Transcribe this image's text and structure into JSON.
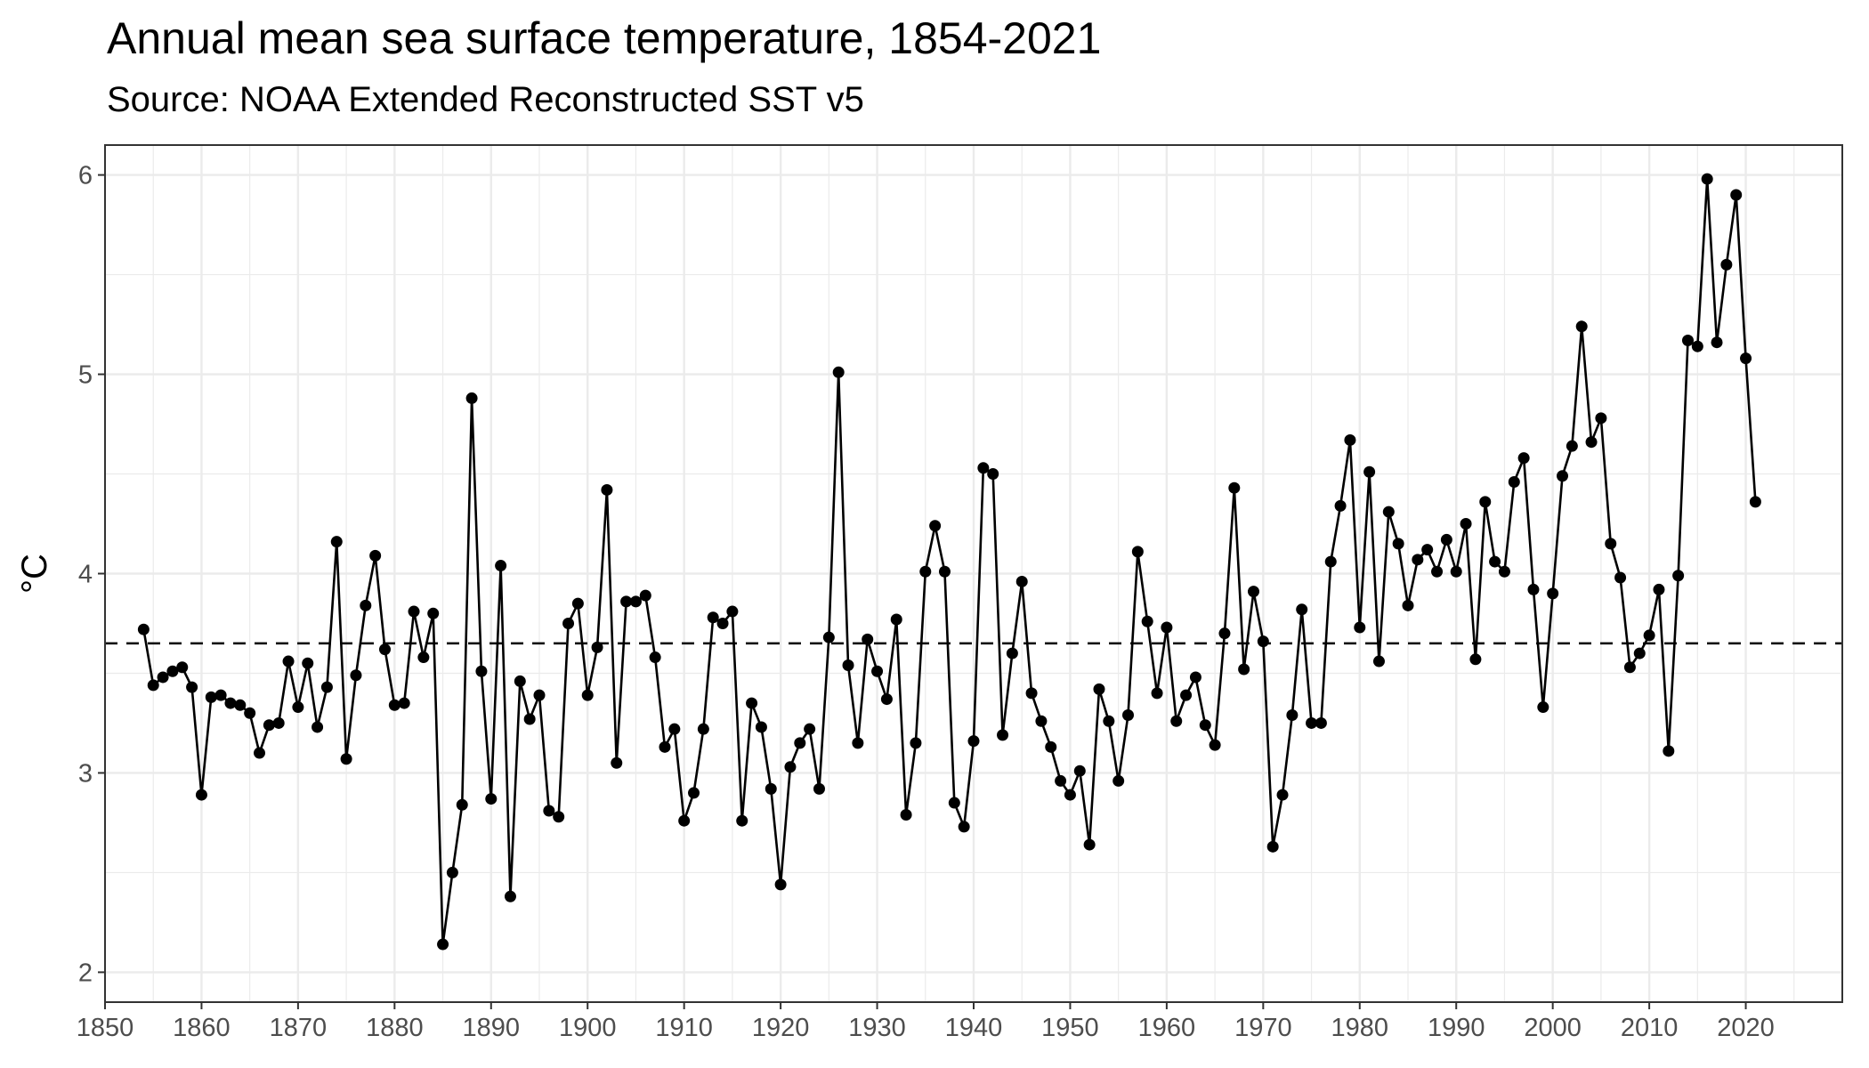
{
  "chart_data": {
    "type": "line",
    "title": "Annual mean sea surface temperature, 1854-2021",
    "subtitle": "Source: NOAA Extended Reconstructed SST v5",
    "xlabel": "",
    "ylabel": "°C",
    "xlim": [
      1850,
      2030
    ],
    "ylim": [
      2,
      6.15
    ],
    "x_ticks": [
      1850,
      1860,
      1870,
      1880,
      1890,
      1900,
      1910,
      1920,
      1930,
      1940,
      1950,
      1960,
      1970,
      1980,
      1990,
      2000,
      2010,
      2020
    ],
    "y_ticks": [
      2,
      3,
      4,
      5,
      6
    ],
    "grid": true,
    "markers": true,
    "reference_line": {
      "style": "dashed",
      "y": 3.65
    },
    "series": [
      {
        "x": [
          1854,
          1855,
          1856,
          1857,
          1858,
          1859,
          1860,
          1861,
          1862,
          1863,
          1864,
          1865,
          1866,
          1867,
          1868,
          1869,
          1870,
          1871,
          1872,
          1873,
          1874,
          1875,
          1876,
          1877,
          1878,
          1879,
          1880,
          1881,
          1882,
          1883,
          1884,
          1885,
          1886,
          1887,
          1888,
          1889,
          1890,
          1891,
          1892,
          1893,
          1894,
          1895,
          1896,
          1897,
          1898,
          1899,
          1900,
          1901,
          1902,
          1903,
          1904,
          1905,
          1906,
          1907,
          1908,
          1909,
          1910,
          1911,
          1912,
          1913,
          1914,
          1915,
          1916,
          1917,
          1918,
          1919,
          1920,
          1921,
          1922,
          1923,
          1924,
          1925,
          1926,
          1927,
          1928,
          1929,
          1930,
          1931,
          1932,
          1933,
          1934,
          1935,
          1936,
          1937,
          1938,
          1939,
          1940,
          1941,
          1942,
          1943,
          1944,
          1945,
          1946,
          1947,
          1948,
          1949,
          1950,
          1951,
          1952,
          1953,
          1954,
          1955,
          1956,
          1957,
          1958,
          1959,
          1960,
          1961,
          1962,
          1963,
          1964,
          1965,
          1966,
          1967,
          1968,
          1969,
          1970,
          1971,
          1972,
          1973,
          1974,
          1975,
          1976,
          1977,
          1978,
          1979,
          1980,
          1981,
          1982,
          1983,
          1984,
          1985,
          1986,
          1987,
          1988,
          1989,
          1990,
          1991,
          1992,
          1993,
          1994,
          1995,
          1996,
          1997,
          1998,
          1999,
          2000,
          2001,
          2002,
          2003,
          2004,
          2005,
          2006,
          2007,
          2008,
          2009,
          2010,
          2011,
          2012,
          2013,
          2014,
          2015,
          2016,
          2017,
          2018,
          2019,
          2020,
          2021
        ],
        "y": [
          3.72,
          3.44,
          3.48,
          3.51,
          3.53,
          3.43,
          2.89,
          3.38,
          3.39,
          3.35,
          3.34,
          3.3,
          3.1,
          3.24,
          3.25,
          3.56,
          3.33,
          3.55,
          3.23,
          3.43,
          4.16,
          3.07,
          3.49,
          3.84,
          4.09,
          3.62,
          3.34,
          3.35,
          3.81,
          3.58,
          3.8,
          2.14,
          2.5,
          2.84,
          4.88,
          3.51,
          2.87,
          4.04,
          2.38,
          3.46,
          3.27,
          3.39,
          2.81,
          2.78,
          3.75,
          3.85,
          3.39,
          3.63,
          4.42,
          3.05,
          3.86,
          3.86,
          3.89,
          3.58,
          3.13,
          3.22,
          2.76,
          2.9,
          3.22,
          3.78,
          3.75,
          3.81,
          2.76,
          3.35,
          3.23,
          2.92,
          2.44,
          3.03,
          3.15,
          3.22,
          2.92,
          3.68,
          5.01,
          3.54,
          3.15,
          3.67,
          3.51,
          3.37,
          3.77,
          2.79,
          3.15,
          4.01,
          4.24,
          4.01,
          2.85,
          2.73,
          3.16,
          4.53,
          4.5,
          3.19,
          3.6,
          3.96,
          3.4,
          3.26,
          3.13,
          2.96,
          2.89,
          3.01,
          2.64,
          3.42,
          3.26,
          2.96,
          3.29,
          4.11,
          3.76,
          3.4,
          3.73,
          3.26,
          3.39,
          3.48,
          3.24,
          3.14,
          3.7,
          4.43,
          3.52,
          3.91,
          3.66,
          2.63,
          2.89,
          3.29,
          3.82,
          3.25,
          3.25,
          4.06,
          4.34,
          4.67,
          3.73,
          4.51,
          3.56,
          4.31,
          4.15,
          3.84,
          4.07,
          4.12,
          4.01,
          4.17,
          4.01,
          4.25,
          3.57,
          4.36,
          4.06,
          4.01,
          4.46,
          4.58,
          3.92,
          3.33,
          3.9,
          4.49,
          4.64,
          5.24,
          4.66,
          4.78,
          4.15,
          3.98,
          3.53,
          3.6,
          3.69,
          3.92,
          3.11,
          3.99,
          5.17,
          5.14,
          5.98,
          5.16,
          5.55,
          5.9,
          5.08,
          4.36
        ]
      }
    ]
  },
  "colors": {
    "line": "#000000",
    "grid": "#ebebeb",
    "border": "#333333",
    "tick_text": "#4d4d4d"
  }
}
